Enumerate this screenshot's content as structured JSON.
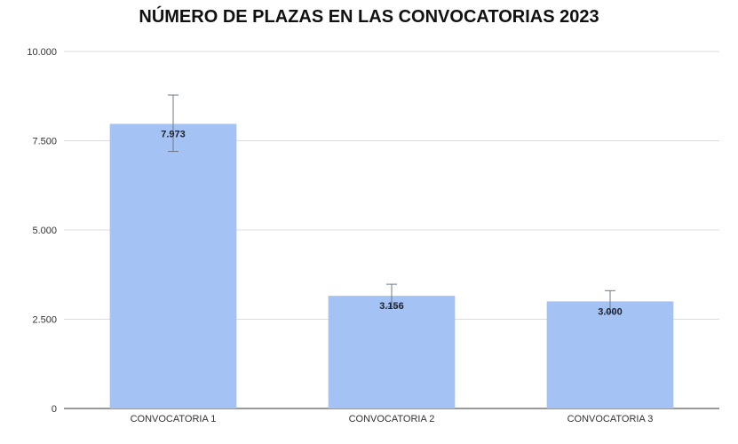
{
  "chart_data": {
    "type": "bar",
    "title": "NÚMERO DE PLAZAS EN LAS CONVOCATORIAS 2023",
    "categories": [
      "CONVOCATORIA 1",
      "CONVOCATORIA 2",
      "CONVOCATORIA 3"
    ],
    "values": [
      7973,
      3156,
      3000
    ],
    "value_labels": [
      "7.973",
      "3.156",
      "3.000"
    ],
    "error_bars": [
      [
        7200,
        8780
      ],
      [
        2850,
        3480
      ],
      [
        2700,
        3300
      ]
    ],
    "ylim": [
      0,
      10000
    ],
    "yticks": [
      0,
      2500,
      5000,
      7500,
      10000
    ],
    "ytick_labels": [
      "0",
      "2.500",
      "5.000",
      "7.500",
      "10.000"
    ],
    "xlabel": "",
    "ylabel": "",
    "grid": true,
    "legend": "none",
    "bar_color": "#a4c2f4",
    "error_bar_color": "#6f7a86"
  }
}
